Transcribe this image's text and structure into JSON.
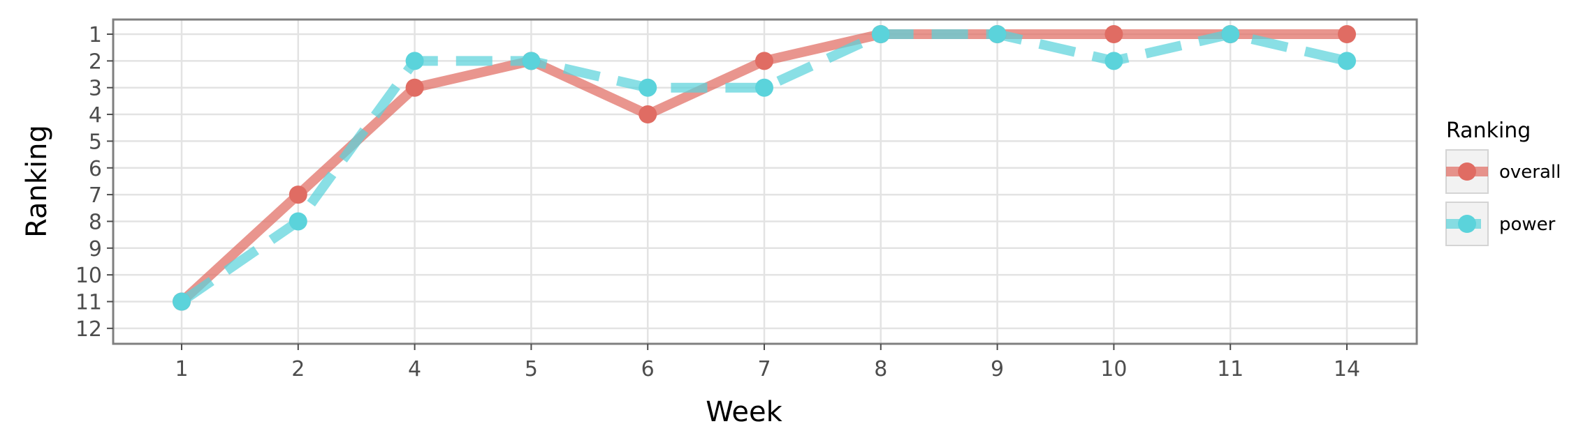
{
  "chart_data": {
    "type": "line",
    "xlabel": "Week",
    "ylabel": "Ranking",
    "categories": [
      "1",
      "2",
      "4",
      "5",
      "6",
      "7",
      "8",
      "9",
      "10",
      "11",
      "14"
    ],
    "y_ticks": [
      1,
      2,
      3,
      4,
      5,
      6,
      7,
      8,
      9,
      10,
      11,
      12
    ],
    "ylim": [
      1,
      12
    ],
    "y_reversed": true,
    "grid": true,
    "legend_title": "Ranking",
    "legend_position": "right",
    "series": [
      {
        "name": "overall",
        "color": "#e06c63",
        "line_style": "solid",
        "values": [
          11,
          7,
          3,
          2,
          4,
          2,
          1,
          1,
          1,
          1,
          1
        ]
      },
      {
        "name": "power",
        "color": "#5bd3db",
        "line_style": "dashed",
        "values": [
          11,
          8,
          2,
          2,
          3,
          3,
          1,
          1,
          2,
          1,
          2
        ]
      }
    ]
  }
}
